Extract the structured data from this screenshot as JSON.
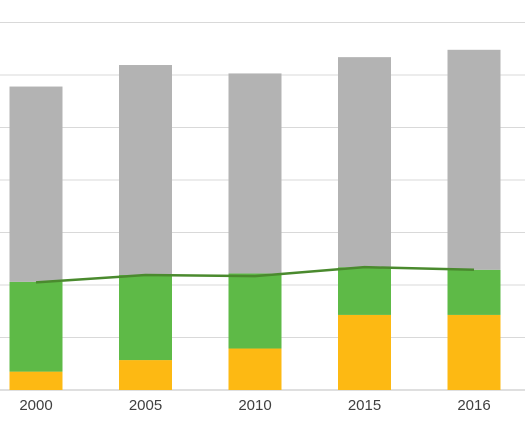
{
  "chart_data": {
    "type": "bar",
    "stacked": true,
    "categories": [
      "2000",
      "2005",
      "2010",
      "2015",
      "2016"
    ],
    "series": [
      {
        "color": "#FDB913",
        "values": [
          0.35,
          0.57,
          0.79,
          1.43,
          1.43
        ]
      },
      {
        "color": "#5EBA47",
        "values": [
          1.71,
          1.62,
          1.43,
          0.91,
          0.86
        ]
      },
      {
        "color": "#B3B3B3",
        "values": [
          3.72,
          4.0,
          3.81,
          4.0,
          4.19
        ]
      }
    ],
    "line": {
      "color": "#4A8A2E",
      "values": [
        2.05,
        2.19,
        2.17,
        2.34,
        2.29
      ]
    },
    "ylim": [
      0,
      7.2
    ],
    "gridlines": [
      0,
      1,
      2,
      3,
      4,
      5,
      6,
      7
    ],
    "grid": true,
    "legend": "none"
  }
}
